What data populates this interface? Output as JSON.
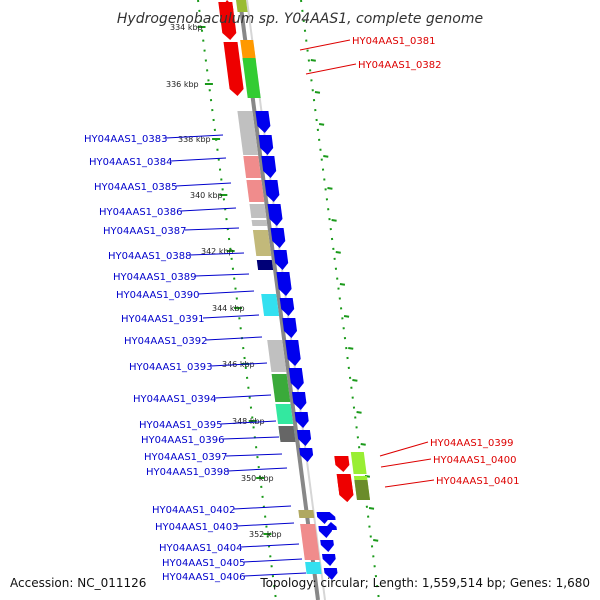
{
  "title": "Hydrogenobaculum sp. Y04AAS1, complete genome",
  "footer": {
    "accession": "Accession: NC_011126",
    "stats": "Topology: circular; Length: 1,559,514 bp; Genes: 1,680"
  },
  "colors": {
    "forward_strand": "#0000ee",
    "reverse_strand": "#ee0000",
    "dark_blue": "#000077",
    "left_label": "#0000cc",
    "right_label": "#dd0000",
    "backbone": "#888888",
    "tick_dots": "#1a9a1a"
  },
  "scale": {
    "ticks": [
      "334 kbp",
      "336 kbp",
      "338 kbp",
      "340 kbp",
      "342 kbp",
      "344 kbp",
      "346 kbp",
      "348 kbp",
      "350 kbp",
      "352 kbp"
    ]
  },
  "left_genes": [
    {
      "label": "HY04AAS1_0383",
      "cog": "#c0c0c0"
    },
    {
      "label": "HY04AAS1_0384",
      "cog": "#f08c8c"
    },
    {
      "label": "HY04AAS1_0385",
      "cog": "#f08c8c"
    },
    {
      "label": "HY04AAS1_0386",
      "cog": "#c0c0c0"
    },
    {
      "label": "HY04AAS1_0387",
      "cog": "#c0c0c0"
    },
    {
      "label": "HY04AAS1_0388",
      "cog": "#c2b97a"
    },
    {
      "label": "HY04AAS1_0389",
      "cog": "#000077"
    },
    {
      "label": "HY04AAS1_0390",
      "cog": ""
    },
    {
      "label": "HY04AAS1_0391",
      "cog": "#33e0f0"
    },
    {
      "label": "HY04AAS1_0392",
      "cog": ""
    },
    {
      "label": "HY04AAS1_0393",
      "cog": "#c0c0c0"
    },
    {
      "label": "HY04AAS1_0394",
      "cog": "#3aaa3a"
    },
    {
      "label": "HY04AAS1_0395",
      "cog": "#33e8a0"
    },
    {
      "label": "HY04AAS1_0396",
      "cog": "#33e8a0"
    },
    {
      "label": "HY04AAS1_0397",
      "cog": "#666666"
    },
    {
      "label": "HY04AAS1_0398",
      "cog": ""
    },
    {
      "label": "HY04AAS1_0402",
      "cog": "#b0a860"
    },
    {
      "label": "HY04AAS1_0403",
      "cog": ""
    },
    {
      "label": "HY04AAS1_0404",
      "cog": "#f08c8c"
    },
    {
      "label": "HY04AAS1_0405",
      "cog": "#33e0f0"
    },
    {
      "label": "HY04AAS1_0406",
      "cog": ""
    }
  ],
  "right_genes": [
    {
      "label": "HY04AAS1_0381",
      "cog": "#ff9900"
    },
    {
      "label": "HY04AAS1_0382",
      "cog": "#33cc33"
    },
    {
      "label": "HY04AAS1_0399",
      "cog": "#99ee33"
    },
    {
      "label": "HY04AAS1_0400",
      "cog": "#99ee33"
    },
    {
      "label": "HY04AAS1_0401",
      "cog": "#6b8c2a"
    }
  ]
}
